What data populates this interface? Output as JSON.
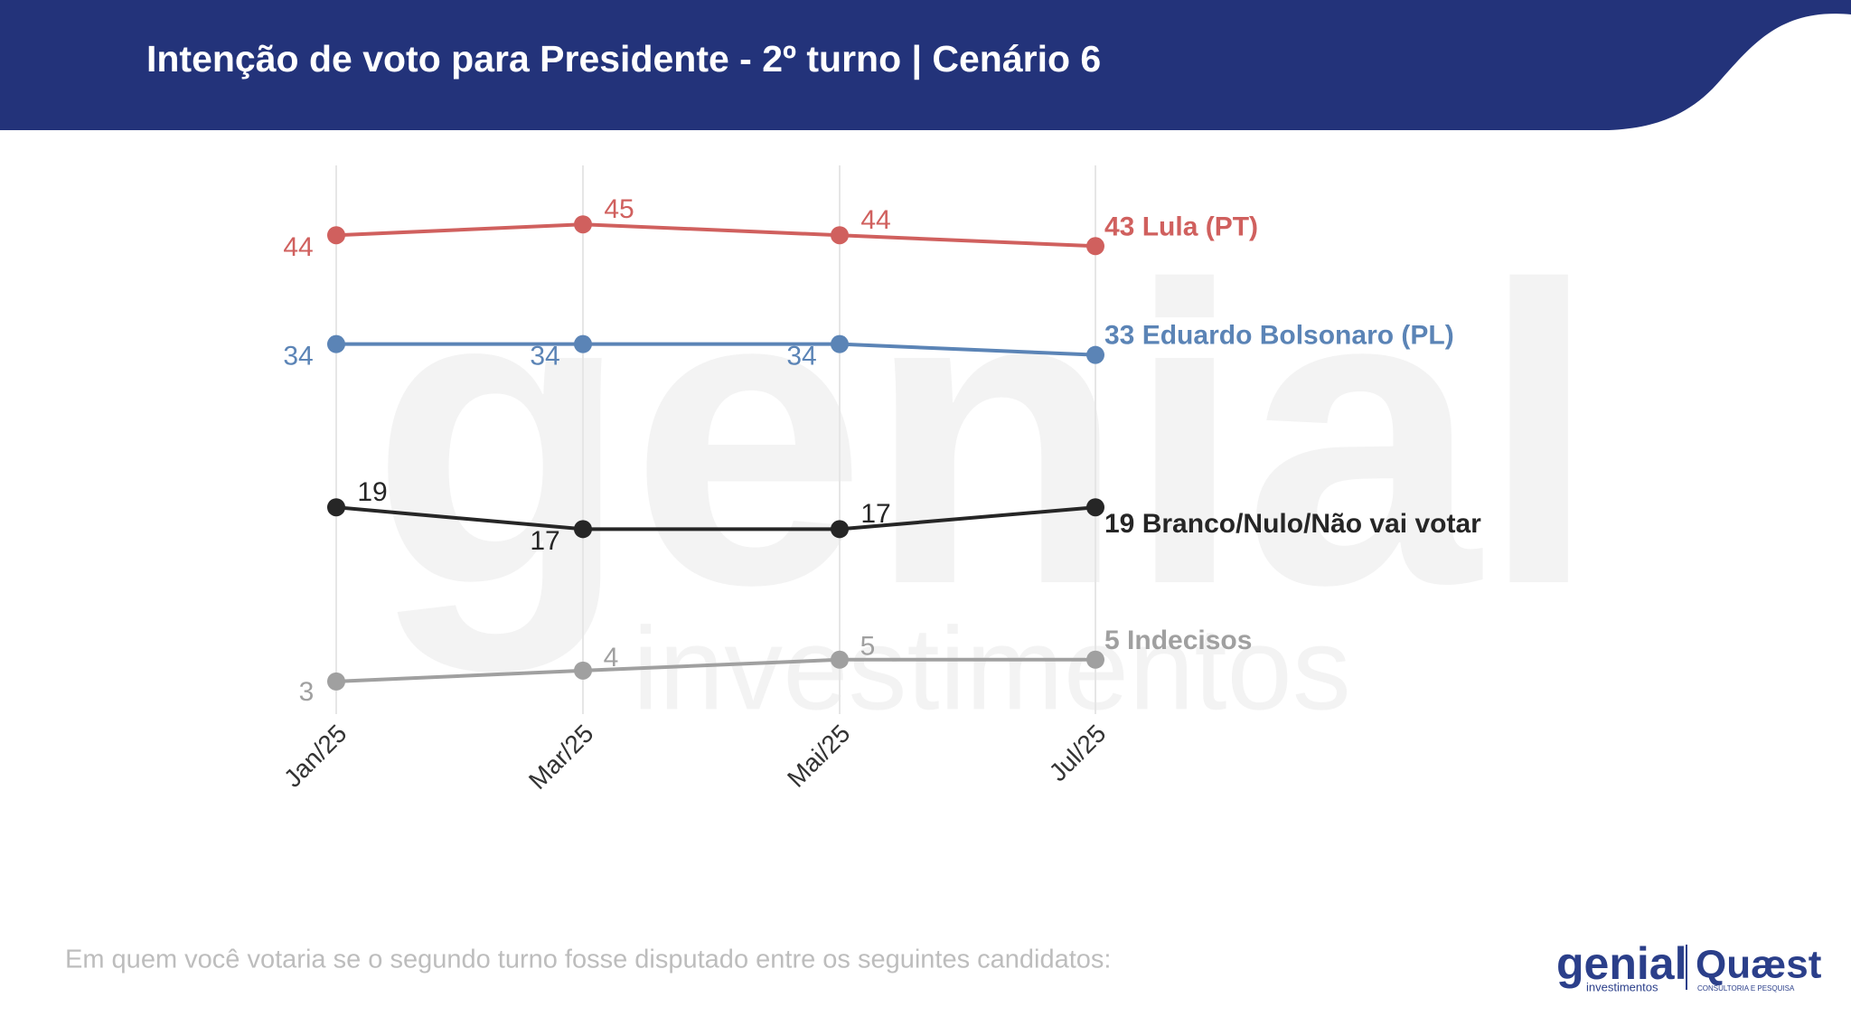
{
  "chart_data": {
    "type": "line",
    "title": "Intenção de voto para Presidente - 2º turno | Cenário 6",
    "categories": [
      "Jan/25",
      "Mar/25",
      "Mai/25",
      "Jul/25"
    ],
    "ylim": [
      0,
      50
    ],
    "grid": true,
    "series": [
      {
        "name": "Lula (PT)",
        "color": "#d0605e",
        "values": [
          44,
          45,
          44,
          43
        ]
      },
      {
        "name": "Eduardo Bolsonaro (PL)",
        "color": "#5b84b6",
        "values": [
          34,
          34,
          34,
          33
        ]
      },
      {
        "name": "Branco/Nulo/Não vai votar",
        "color": "#262626",
        "values": [
          19,
          17,
          17,
          19
        ]
      },
      {
        "name": "Indecisos",
        "color": "#a0a0a0",
        "values": [
          3,
          4,
          5,
          5
        ]
      }
    ],
    "footnote": "Em quem você votaria se o segundo turno fosse disputado entre os seguintes candidatos:",
    "watermark": [
      "genial",
      "investimentos"
    ],
    "logos": {
      "genial": "genial",
      "genial_sub": "investimentos",
      "quaest": "Quæst",
      "quaest_sub": "CONSULTORIA E PESQUISA"
    }
  }
}
